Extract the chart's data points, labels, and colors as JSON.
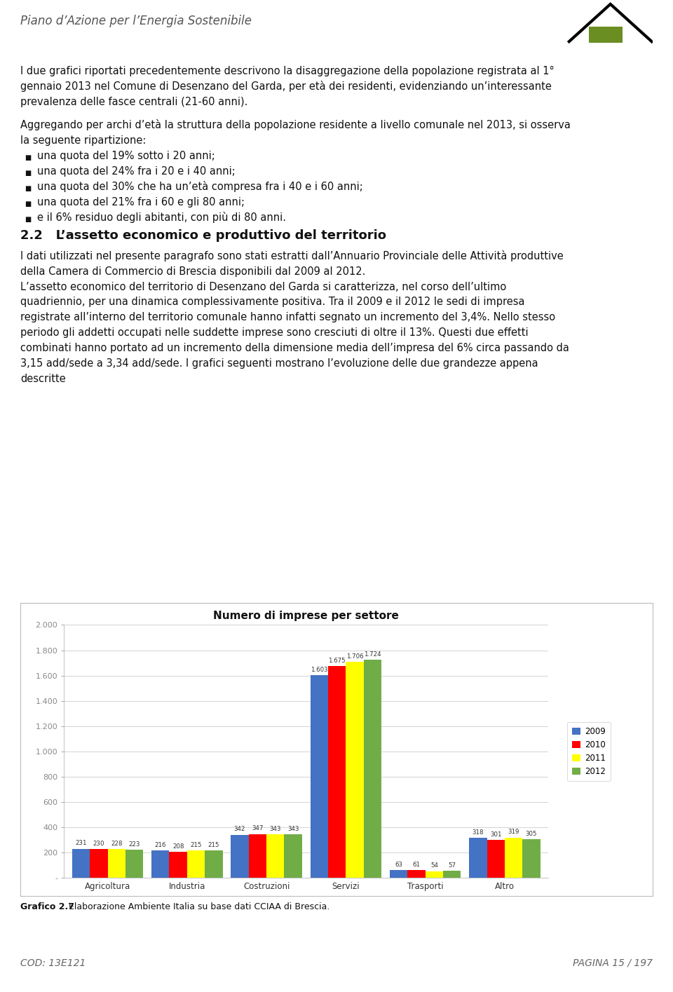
{
  "title": "Numero di imprese per settore",
  "categories": [
    "Agricoltura",
    "Industria",
    "Costruzioni",
    "Servizi",
    "Trasporti",
    "Altro"
  ],
  "years": [
    "2009",
    "2010",
    "2011",
    "2012"
  ],
  "bar_colors": [
    "#4472C4",
    "#FF0000",
    "#FFFF00",
    "#70AD47"
  ],
  "values": {
    "Agricoltura": [
      231,
      230,
      228,
      223
    ],
    "Industria": [
      216,
      208,
      215,
      215
    ],
    "Costruzioni": [
      342,
      347,
      343,
      343
    ],
    "Servizi": [
      1603,
      1675,
      1706,
      1724
    ],
    "Trasporti": [
      63,
      61,
      54,
      57
    ],
    "Altro": [
      318,
      301,
      319,
      305
    ]
  },
  "ylim": [
    0,
    2000
  ],
  "ytick_vals": [
    0,
    200,
    400,
    600,
    800,
    1000,
    1200,
    1400,
    1600,
    1800,
    2000
  ],
  "ytick_labels": [
    "-",
    "200",
    "400",
    "600",
    "800",
    "1.000",
    "1.200",
    "1.400",
    "1.600",
    "1.800",
    "2.000"
  ],
  "header_title": "Piano d’Azione per l’Energia Sostenibile",
  "para1_lines": [
    "I due grafici riportati precedentemente descrivono la disaggregazione della popolazione registrata al 1°",
    "gennaio 2013 nel Comune di Desenzano del Garda, per età dei residenti, evidenziando un’interessante",
    "prevalenza delle fasce centrali (21-60 anni)."
  ],
  "para2_lines": [
    "Aggregando per archi d’età la struttura della popolazione residente a livello comunale nel 2013, si osserva",
    "la seguente ripartizione:"
  ],
  "bullets": [
    "una quota del 19% sotto i 20 anni;",
    "una quota del 24% fra i 20 e i 40 anni;",
    "una quota del 30% che ha un’età compresa fra i 40 e i 60 anni;",
    "una quota del 21% fra i 60 e gli 80 anni;",
    "e il 6% residuo degli abitanti, con più di 80 anni."
  ],
  "section_title": "2.2   L’assetto economico e produttivo del territorio",
  "para3_lines": [
    "I dati utilizzati nel presente paragrafo sono stati estratti dall’Annuario Provinciale delle Attività produttive",
    "della Camera di Commercio di Brescia disponibili dal 2009 al 2012."
  ],
  "para4_lines": [
    "L’assetto economico del territorio di Desenzano del Garda si caratterizza, nel corso dell’ultimo",
    "quadriennio, per una dinamica complessivamente positiva. Tra il 2009 e il 2012 le sedi di impresa",
    "registrate all’interno del territorio comunale hanno infatti segnato un incremento del 3,4%. Nello stesso",
    "periodo gli addetti occupati nelle suddette imprese sono cresciuti di oltre il 13%. Questi due effetti",
    "combinati hanno portato ad un incremento della dimensione media dell’impresa del 6% circa passando da",
    "3,15 add/sede a 3,34 add/sede. I grafici seguenti mostrano l’evoluzione delle due grandezze appena",
    "descritte"
  ],
  "caption_bold": "Grafico 2.7",
  "caption_rest": " Elaborazione Ambiente Italia su base dati CCIAA di Brescia.",
  "footer_left": "COD: 13E121",
  "footer_right": "PAGINA 15 / 197",
  "page_bg": "#FFFFFF",
  "header_line_color": "#C8B400",
  "footer_line_color": "#C8B400",
  "grid_color": "#CCCCCC",
  "text_font_size": 10.5,
  "header_font_size": 12,
  "section_font_size": 13
}
